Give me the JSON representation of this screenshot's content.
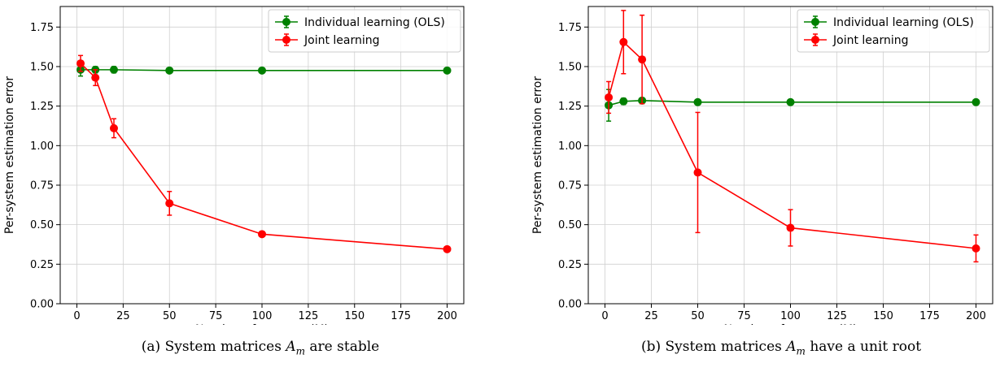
{
  "chart_data": [
    {
      "type": "line",
      "xlabel": "Number of systems (M)",
      "ylabel": "Per-system estimation error",
      "xlim": [
        -9,
        209
      ],
      "ylim": [
        0,
        1.88
      ],
      "xticks": [
        0,
        25,
        50,
        75,
        100,
        125,
        150,
        175,
        200
      ],
      "yticks": [
        0.0,
        0.25,
        0.5,
        0.75,
        1.0,
        1.25,
        1.5,
        1.75
      ],
      "xtick_labels": [
        "0",
        "25",
        "50",
        "75",
        "100",
        "125",
        "150",
        "175",
        "200"
      ],
      "ytick_labels": [
        "0.00",
        "0.25",
        "0.50",
        "0.75",
        "1.00",
        "1.25",
        "1.50",
        "1.75"
      ],
      "grid": true,
      "legend_position": "top-right",
      "x": [
        2,
        10,
        20,
        50,
        100,
        200
      ],
      "series": [
        {
          "name": "Individual learning (OLS)",
          "color": "#008000",
          "values": [
            1.48,
            1.48,
            1.48,
            1.475,
            1.475,
            1.475
          ],
          "errors": [
            0.04,
            0.02,
            0.02,
            0.01,
            0.005,
            0.005
          ]
        },
        {
          "name": "Joint learning",
          "color": "#ff0000",
          "values": [
            1.52,
            1.43,
            1.11,
            0.635,
            0.44,
            0.345
          ],
          "errors": [
            0.05,
            0.05,
            0.06,
            0.075,
            0.01,
            0.01
          ]
        }
      ],
      "caption": {
        "prefix": "(a) System matrices ",
        "var": "A",
        "sub": "m",
        "suffix": " are stable"
      }
    },
    {
      "type": "line",
      "xlabel": "Number of systems (M)",
      "ylabel": "Per-system estimation error",
      "xlim": [
        -9,
        209
      ],
      "ylim": [
        0,
        1.88
      ],
      "xticks": [
        0,
        25,
        50,
        75,
        100,
        125,
        150,
        175,
        200
      ],
      "yticks": [
        0.0,
        0.25,
        0.5,
        0.75,
        1.0,
        1.25,
        1.5,
        1.75
      ],
      "xtick_labels": [
        "0",
        "25",
        "50",
        "75",
        "100",
        "125",
        "150",
        "175",
        "200"
      ],
      "ytick_labels": [
        "0.00",
        "0.25",
        "0.50",
        "0.75",
        "1.00",
        "1.25",
        "1.50",
        "1.75"
      ],
      "grid": true,
      "legend_position": "top-right",
      "x": [
        2,
        10,
        20,
        50,
        100,
        200
      ],
      "series": [
        {
          "name": "Individual learning (OLS)",
          "color": "#008000",
          "values": [
            1.255,
            1.28,
            1.285,
            1.275,
            1.275,
            1.275
          ],
          "errors": [
            0.1,
            0.02,
            0.01,
            0.005,
            0.005,
            0.005
          ]
        },
        {
          "name": "Joint learning",
          "color": "#ff0000",
          "values": [
            1.305,
            1.655,
            1.545,
            0.83,
            0.48,
            0.35
          ],
          "errors": [
            0.1,
            0.2,
            0.28,
            0.38,
            0.115,
            0.085
          ]
        }
      ],
      "caption": {
        "prefix": "(b) System matrices ",
        "var": "A",
        "sub": "m",
        "suffix": " have a unit root"
      }
    }
  ]
}
